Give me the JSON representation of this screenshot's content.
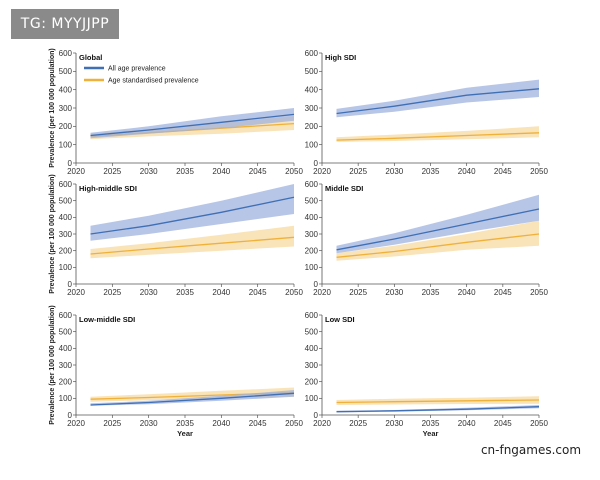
{
  "watermark": {
    "top": "TG: MYYJJPP",
    "bottom": "cn-fngames.com"
  },
  "colors": {
    "all_age": "#3f6fb5",
    "all_age_band": "#9fb3df",
    "age_std": "#f0b13a",
    "age_std_band": "#f6d79a"
  },
  "chart_data": {
    "type": "line",
    "xlabel": "Year",
    "ylabel": "Prevalence (per 100 000 population)",
    "xlim": [
      2020,
      2050
    ],
    "ylim": [
      0,
      600
    ],
    "xticks": [
      2020,
      2025,
      2030,
      2035,
      2040,
      2045,
      2050
    ],
    "yticks": [
      0,
      100,
      200,
      300,
      400,
      500,
      600
    ],
    "legend": {
      "placement": "top-left",
      "entries": [
        "All age prevalence",
        "Age standardised prevalence"
      ]
    },
    "panels": [
      {
        "title": "Global",
        "series": [
          {
            "name": "All age prevalence",
            "x": [
              2022,
              2030,
              2040,
              2050
            ],
            "y": [
              150,
              180,
              222,
              265
            ],
            "lower": [
              135,
              160,
              190,
              230
            ],
            "upper": [
              165,
              200,
              255,
              300
            ]
          },
          {
            "name": "Age standardised prevalence",
            "x": [
              2022,
              2030,
              2040,
              2050
            ],
            "y": [
              145,
              165,
              190,
              215
            ],
            "lower": [
              130,
              145,
              160,
              180
            ],
            "upper": [
              160,
              185,
              220,
              255
            ]
          }
        ]
      },
      {
        "title": "High SDI",
        "series": [
          {
            "name": "All age prevalence",
            "x": [
              2022,
              2030,
              2040,
              2050
            ],
            "y": [
              270,
              310,
              370,
              405
            ],
            "lower": [
              250,
              280,
              330,
              360
            ],
            "upper": [
              295,
              340,
              410,
              455
            ]
          },
          {
            "name": "Age standardised prevalence",
            "x": [
              2022,
              2030,
              2040,
              2050
            ],
            "y": [
              125,
              135,
              150,
              165
            ],
            "lower": [
              115,
              120,
              130,
              140
            ],
            "upper": [
              140,
              155,
              175,
              200
            ]
          }
        ]
      },
      {
        "title": "High-middle SDI",
        "series": [
          {
            "name": "All age prevalence",
            "x": [
              2022,
              2030,
              2040,
              2050
            ],
            "y": [
              300,
              350,
              430,
              520
            ],
            "lower": [
              260,
              300,
              360,
              420
            ],
            "upper": [
              350,
              410,
              500,
              600
            ]
          },
          {
            "name": "Age standardised prevalence",
            "x": [
              2022,
              2030,
              2040,
              2050
            ],
            "y": [
              180,
              210,
              245,
              280
            ],
            "lower": [
              155,
              175,
              200,
              225
            ],
            "upper": [
              210,
              245,
              295,
              350
            ]
          }
        ]
      },
      {
        "title": "Middle SDI",
        "series": [
          {
            "name": "All age prevalence",
            "x": [
              2022,
              2030,
              2040,
              2050
            ],
            "y": [
              205,
              270,
              360,
              450
            ],
            "lower": [
              185,
              235,
              310,
              380
            ],
            "upper": [
              230,
              305,
              415,
              535
            ]
          },
          {
            "name": "Age standardised prevalence",
            "x": [
              2022,
              2030,
              2040,
              2050
            ],
            "y": [
              160,
              195,
              250,
              300
            ],
            "lower": [
              140,
              165,
              205,
              230
            ],
            "upper": [
              185,
              230,
              300,
              380
            ]
          }
        ]
      },
      {
        "title": "Low-middle SDI",
        "series": [
          {
            "name": "All age prevalence",
            "x": [
              2022,
              2030,
              2040,
              2050
            ],
            "y": [
              60,
              75,
              100,
              130
            ],
            "lower": [
              55,
              65,
              85,
              110
            ],
            "upper": [
              70,
              85,
              115,
              150
            ]
          },
          {
            "name": "Age standardised prevalence",
            "x": [
              2022,
              2030,
              2040,
              2050
            ],
            "y": [
              95,
              105,
              120,
              135
            ],
            "lower": [
              80,
              88,
              100,
              110
            ],
            "upper": [
              110,
              125,
              145,
              165
            ]
          }
        ]
      },
      {
        "title": "Low SDI",
        "series": [
          {
            "name": "All age prevalence",
            "x": [
              2022,
              2030,
              2040,
              2050
            ],
            "y": [
              20,
              25,
              35,
              50
            ],
            "lower": [
              15,
              20,
              28,
              40
            ],
            "upper": [
              25,
              30,
              43,
              60
            ]
          },
          {
            "name": "Age standardised prevalence",
            "x": [
              2022,
              2030,
              2040,
              2050
            ],
            "y": [
              75,
              80,
              85,
              90
            ],
            "lower": [
              60,
              63,
              66,
              68
            ],
            "upper": [
              90,
              97,
              104,
              112
            ]
          }
        ]
      }
    ]
  }
}
